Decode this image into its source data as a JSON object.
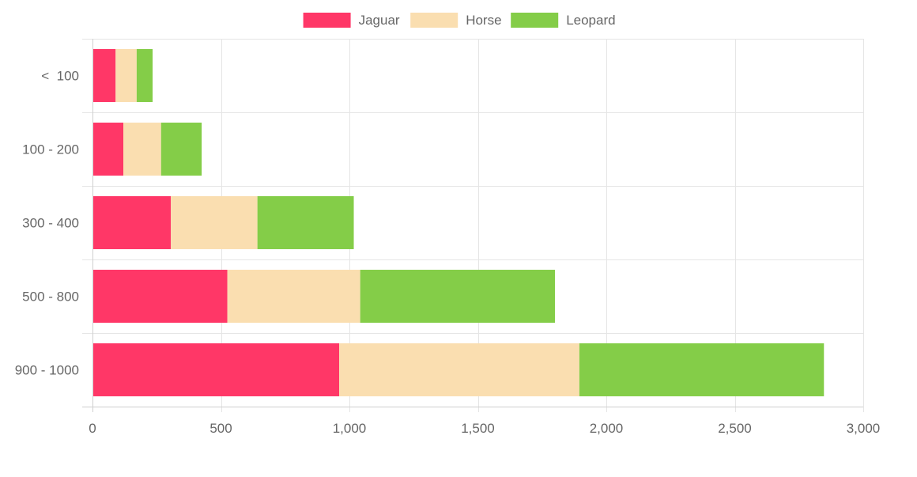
{
  "chart_data": {
    "type": "bar",
    "orientation": "horizontal",
    "stacked": true,
    "categories": [
      "<  100",
      "100 - 200",
      "300 - 400",
      "500 - 800",
      "900 - 1000"
    ],
    "series": [
      {
        "name": "Jaguar",
        "color": "#ff3767",
        "values": [
          90,
          120,
          305,
          525,
          960
        ]
      },
      {
        "name": "Horse",
        "color": "#fadeb0",
        "values": [
          82,
          147,
          337,
          517,
          935
        ]
      },
      {
        "name": "Leopard",
        "color": "#84cd48",
        "values": [
          62,
          158,
          375,
          758,
          952
        ]
      }
    ],
    "xlim": [
      0,
      3000
    ],
    "xticks": [
      0,
      500,
      1000,
      1500,
      2000,
      2500,
      3000
    ],
    "xtick_labels": [
      "0",
      "500",
      "1,000",
      "1,500",
      "2,000",
      "2,500",
      "3,000"
    ],
    "title": "",
    "xlabel": "",
    "ylabel": "",
    "grid": true,
    "legend_position": "top"
  }
}
